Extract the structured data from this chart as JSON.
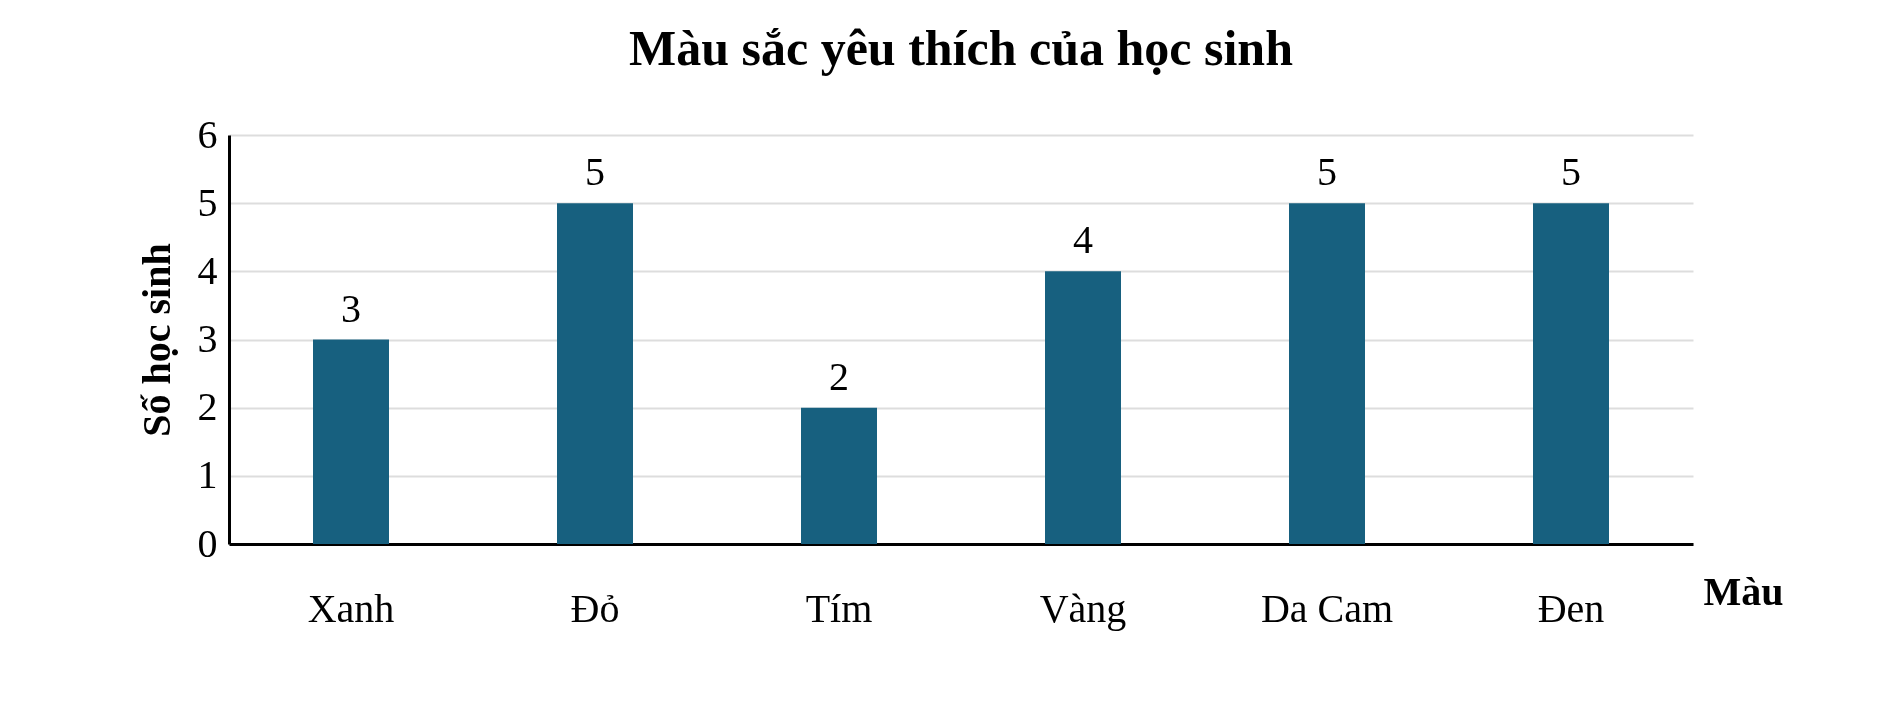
{
  "chart_data": {
    "type": "bar",
    "title": "Màu sắc yêu thích của học sinh",
    "xlabel": "Màu",
    "ylabel": "Số học sinh",
    "categories": [
      "Xanh",
      "Đỏ",
      "Tím",
      "Vàng",
      "Da Cam",
      "Đen"
    ],
    "values": [
      3,
      5,
      2,
      4,
      5,
      5
    ],
    "color": "#17607f",
    "ylim": [
      0,
      6
    ],
    "yticks": [
      0,
      1,
      2,
      3,
      4,
      5,
      6
    ],
    "grid": "y",
    "data_labels": true
  }
}
